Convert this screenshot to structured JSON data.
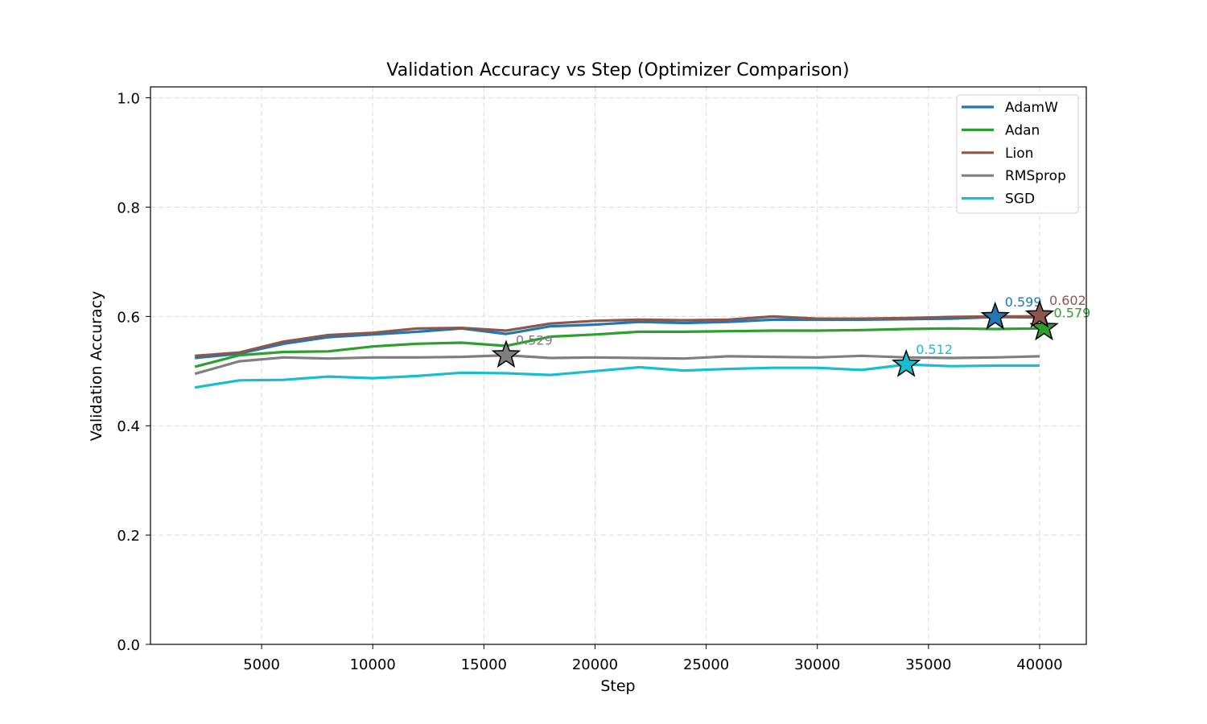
{
  "chart_data": {
    "type": "line",
    "title": "Validation Accuracy vs Step (Optimizer Comparison)",
    "xlabel": "Step",
    "ylabel": "Validation Accuracy",
    "xlim": [
      0,
      42100
    ],
    "ylim": [
      0.0,
      1.02
    ],
    "xticks": [
      5000,
      10000,
      15000,
      20000,
      25000,
      30000,
      35000,
      40000
    ],
    "yticks": [
      0.0,
      0.2,
      0.4,
      0.6,
      0.8,
      1.0
    ],
    "xtick_labels": [
      "5000",
      "10000",
      "15000",
      "20000",
      "25000",
      "30000",
      "35000",
      "40000"
    ],
    "ytick_labels": [
      "0.0",
      "0.2",
      "0.4",
      "0.6",
      "0.8",
      "1.0"
    ],
    "grid": true,
    "legend_position": "top-right",
    "x": [
      2000,
      4000,
      6000,
      8000,
      10000,
      12000,
      14000,
      16000,
      18000,
      20000,
      22000,
      24000,
      26000,
      28000,
      30000,
      32000,
      34000,
      36000,
      38000,
      40000
    ],
    "series": [
      {
        "name": "AdamW",
        "color": "#1f77b4",
        "values": [
          0.524,
          0.532,
          0.55,
          0.562,
          0.567,
          0.572,
          0.578,
          0.568,
          0.582,
          0.585,
          0.59,
          0.588,
          0.59,
          0.594,
          0.594,
          0.594,
          0.595,
          0.596,
          0.599,
          0.598
        ],
        "best": {
          "x": 38000,
          "y": 0.599,
          "label": "0.599"
        }
      },
      {
        "name": "Adan",
        "color": "#2ca02c",
        "values": [
          0.508,
          0.529,
          0.535,
          0.536,
          0.545,
          0.55,
          0.552,
          0.546,
          0.563,
          0.567,
          0.572,
          0.572,
          0.573,
          0.574,
          0.574,
          0.575,
          0.577,
          0.578,
          0.577,
          0.578
        ],
        "best": {
          "x": 40200,
          "y": 0.579,
          "label": "0.579"
        }
      },
      {
        "name": "Lion",
        "color": "#8c564b",
        "values": [
          0.528,
          0.534,
          0.554,
          0.566,
          0.57,
          0.578,
          0.579,
          0.574,
          0.587,
          0.592,
          0.594,
          0.593,
          0.594,
          0.6,
          0.596,
          0.596,
          0.597,
          0.599,
          0.6,
          0.6
        ],
        "best": {
          "x": 40000,
          "y": 0.602,
          "label": "0.602"
        }
      },
      {
        "name": "RMSprop",
        "color": "#7f7f7f",
        "values": [
          0.495,
          0.518,
          0.525,
          0.523,
          0.525,
          0.525,
          0.526,
          0.529,
          0.524,
          0.525,
          0.524,
          0.523,
          0.527,
          0.526,
          0.525,
          0.528,
          0.525,
          0.524,
          0.525,
          0.527
        ],
        "best": {
          "x": 16000,
          "y": 0.529,
          "label": "0.529"
        }
      },
      {
        "name": "SGD",
        "color": "#17becf",
        "values": [
          0.47,
          0.483,
          0.484,
          0.49,
          0.487,
          0.491,
          0.497,
          0.496,
          0.493,
          0.5,
          0.507,
          0.501,
          0.504,
          0.506,
          0.506,
          0.502,
          0.512,
          0.509,
          0.51,
          0.51
        ],
        "best": {
          "x": 34000,
          "y": 0.512,
          "label": "0.512"
        }
      }
    ]
  }
}
